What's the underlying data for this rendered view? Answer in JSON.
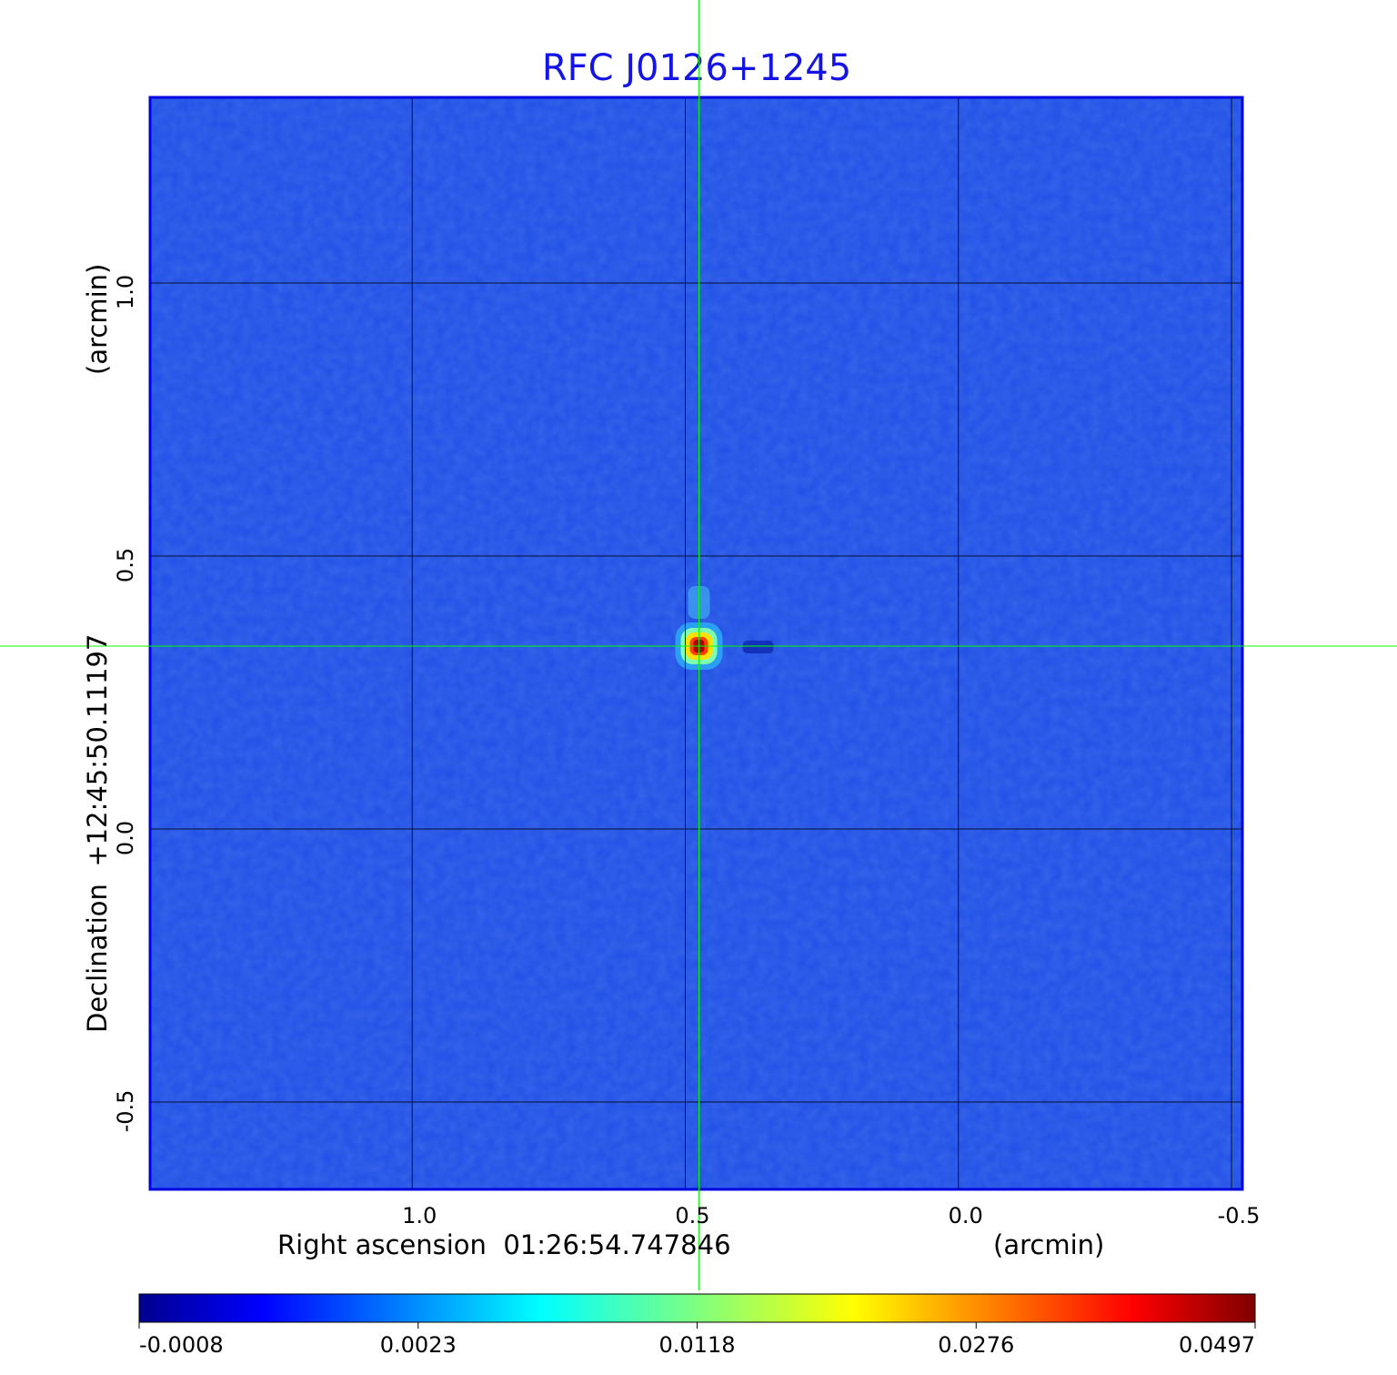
{
  "chart_data": {
    "type": "heatmap",
    "title": "RFC J0126+1245",
    "xlabel": "Right ascension  01:26:54.747846",
    "xunit": "(arcmin)",
    "ylabel": "Declination  +12:45:50.11197",
    "yunit": "(arcmin)",
    "xlim": [
      1.48,
      -0.52
    ],
    "ylim": [
      -0.66,
      1.34
    ],
    "xticks": [
      "1.0",
      "0.5",
      "0.0",
      "-0.5"
    ],
    "xtick_values": [
      1.0,
      0.5,
      0.0,
      -0.5
    ],
    "yticks": [
      "1.0",
      "0.5",
      "0.0",
      "-0.5"
    ],
    "ytick_values": [
      1.0,
      0.5,
      0.0,
      -0.5
    ],
    "grid": true,
    "colormap": "jet",
    "colorbar": {
      "ticks": [
        "-0.0008",
        "0.0023",
        "0.0118",
        "0.0276",
        "0.0497"
      ],
      "tick_values": [
        -0.0008,
        0.0023,
        0.0118,
        0.0276,
        0.0497
      ]
    },
    "crosshair": {
      "x": 0.475,
      "y": 0.335,
      "color": "#00ff00"
    },
    "source": {
      "x": 0.475,
      "y": 0.335,
      "peak": 0.0497
    }
  },
  "colors": {
    "title": "#1414e6",
    "background_map": "#1f4fe6",
    "crosshair": "#00ff00",
    "grid": "#000000"
  }
}
